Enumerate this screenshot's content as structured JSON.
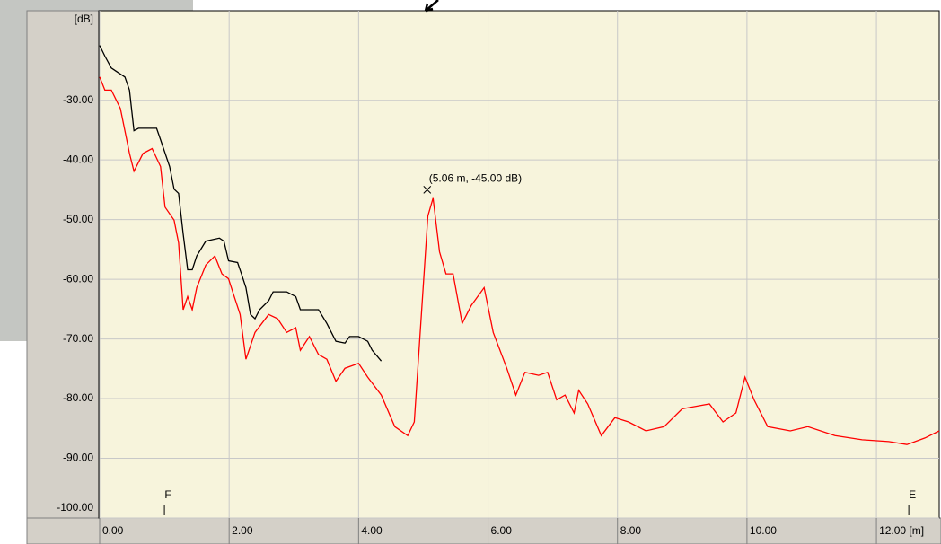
{
  "chart_data": {
    "type": "line",
    "y_label": "[dB]",
    "xlim": [
      0,
      12.97
    ],
    "ylim": [
      -100,
      -15
    ],
    "xticks": [
      {
        "value": 0,
        "label": "0.00"
      },
      {
        "value": 2,
        "label": "2.00"
      },
      {
        "value": 4,
        "label": "4.00"
      },
      {
        "value": 6,
        "label": "6.00"
      },
      {
        "value": 8,
        "label": "8.00"
      },
      {
        "value": 10,
        "label": "10.00"
      },
      {
        "value": 12,
        "label": "12.00 [m]"
      }
    ],
    "yticks": [
      {
        "value": -30,
        "label": "-30.00"
      },
      {
        "value": -40,
        "label": "-40.00"
      },
      {
        "value": -50,
        "label": "-50.00"
      },
      {
        "value": -60,
        "label": "-60.00"
      },
      {
        "value": -70,
        "label": "-70.00"
      },
      {
        "value": -80,
        "label": "-80.00"
      },
      {
        "value": -90,
        "label": "-90.00"
      },
      {
        "value": -100,
        "label": "-100.00"
      }
    ],
    "grid": true,
    "series": [
      {
        "color": "#000000",
        "x": [
          0,
          0.08,
          0.18,
          0.39,
          0.46,
          0.53,
          0.6,
          0.88,
          0.94,
          1.08,
          1.15,
          1.22,
          1.29,
          1.36,
          1.43,
          1.5,
          1.64,
          1.85,
          1.92,
          1.99,
          2.13,
          2.19,
          2.26,
          2.33,
          2.4,
          2.47,
          2.61,
          2.68,
          2.89,
          3.03,
          3.1,
          3.38,
          3.51,
          3.65,
          3.79,
          3.86,
          4.0,
          4.14,
          4.21,
          4.35
        ],
        "values": [
          -20.8,
          -22.6,
          -24.6,
          -26.1,
          -28.3,
          -35.1,
          -34.7,
          -34.7,
          -36.6,
          -41.1,
          -44.9,
          -45.6,
          -52.4,
          -58.4,
          -58.4,
          -56.1,
          -53.6,
          -53.1,
          -53.6,
          -56.9,
          -57.2,
          -59.1,
          -61.4,
          -65.9,
          -66.6,
          -65.1,
          -63.6,
          -62.1,
          -62.1,
          -62.9,
          -65.1,
          -65.1,
          -67.4,
          -70.4,
          -70.7,
          -69.6,
          -69.6,
          -70.4,
          -71.9,
          -73.7
        ]
      },
      {
        "color": "#ff0000",
        "x": [
          0,
          0.08,
          0.18,
          0.32,
          0.46,
          0.53,
          0.6,
          0.67,
          0.81,
          0.94,
          1.01,
          1.15,
          1.22,
          1.29,
          1.36,
          1.43,
          1.5,
          1.64,
          1.78,
          1.89,
          1.99,
          2.08,
          2.17,
          2.26,
          2.4,
          2.61,
          2.75,
          2.89,
          3.03,
          3.1,
          3.24,
          3.38,
          3.51,
          3.65,
          3.79,
          4.0,
          4.14,
          4.35,
          4.56,
          4.76,
          4.86,
          4.97,
          5.07,
          5.15,
          5.25,
          5.35,
          5.46,
          5.6,
          5.74,
          5.94,
          6.08,
          6.29,
          6.43,
          6.57,
          6.78,
          6.92,
          7.06,
          7.19,
          7.33,
          7.4,
          7.54,
          7.75,
          7.96,
          8.17,
          8.44,
          8.72,
          9.0,
          9.42,
          9.63,
          9.83,
          9.97,
          10.11,
          10.32,
          10.67,
          10.94,
          11.36,
          11.78,
          12.19,
          12.47,
          12.75,
          12.97
        ],
        "values": [
          -26.1,
          -28.3,
          -28.3,
          -31.4,
          -38.9,
          -41.9,
          -40.4,
          -38.9,
          -38.1,
          -41.1,
          -47.9,
          -50.1,
          -53.9,
          -65.1,
          -62.9,
          -65.1,
          -61.4,
          -57.6,
          -56.1,
          -59.1,
          -59.9,
          -62.9,
          -65.9,
          -73.4,
          -68.9,
          -65.9,
          -66.6,
          -68.9,
          -68.1,
          -71.9,
          -69.6,
          -72.6,
          -73.4,
          -77.1,
          -74.9,
          -74.1,
          -76.4,
          -79.4,
          -84.7,
          -86.2,
          -83.9,
          -65.9,
          -49.4,
          -46.4,
          -55.4,
          -59.1,
          -59.1,
          -67.4,
          -64.4,
          -61.4,
          -68.9,
          -74.9,
          -79.4,
          -75.6,
          -76.1,
          -75.6,
          -80.2,
          -79.4,
          -82.4,
          -78.6,
          -80.9,
          -86.2,
          -83.2,
          -83.9,
          -85.4,
          -84.7,
          -81.7,
          -80.9,
          -83.9,
          -82.4,
          -76.4,
          -80.2,
          -84.7,
          -85.4,
          -84.7,
          -86.2,
          -86.9,
          -87.2,
          -87.7,
          -86.6,
          -85.4
        ]
      }
    ],
    "annotation": {
      "text": "(5.06 m, -45.00 dB)",
      "x": 5.06,
      "y": -45
    },
    "markers": [
      {
        "label": "F",
        "x": 1.0
      },
      {
        "label": "E",
        "x": 12.5
      }
    ]
  }
}
